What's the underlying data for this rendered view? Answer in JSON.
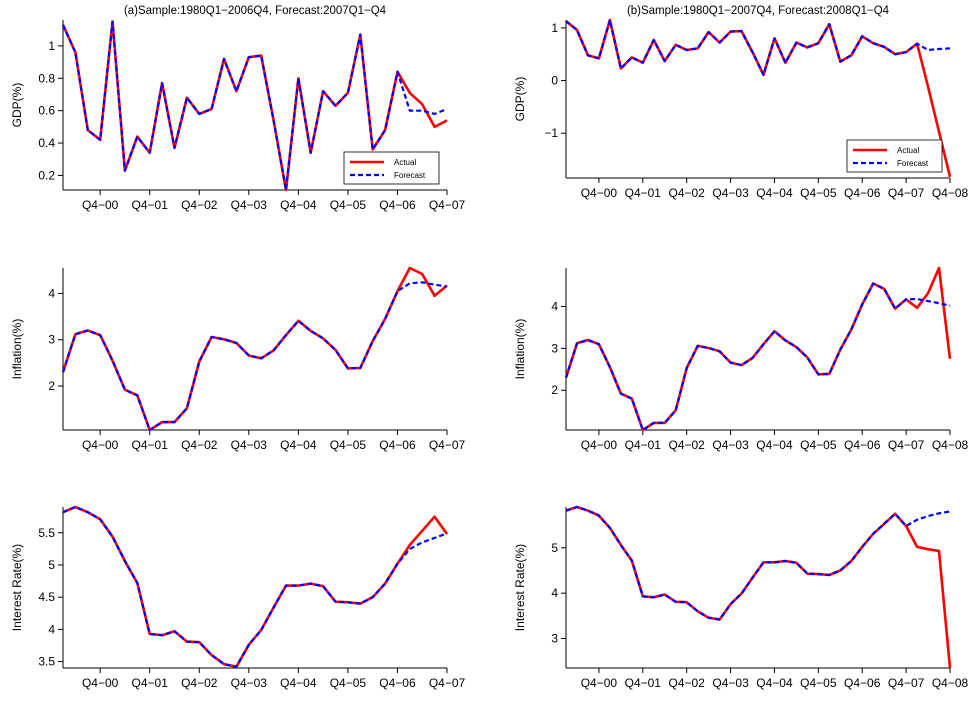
{
  "colors": {
    "actual": "#ff0000",
    "forecast": "#0000ff",
    "axis": "#000000"
  },
  "legend_labels": {
    "actual": "Actual",
    "forecast": "Forecast"
  },
  "chart_data": [
    {
      "type": "line",
      "title": "(a)Sample:1980Q1−2006Q4, Forecast:2007Q1−Q4",
      "ylabel": "GDP(%)",
      "ylim": [
        0.11,
        1.16
      ],
      "yticks": [
        "0.2",
        "0.4",
        "0.6",
        "0.8",
        "1"
      ],
      "xticks": [
        "Q4−00",
        "Q4−01",
        "Q4−02",
        "Q4−03",
        "Q4−04",
        "Q4−05",
        "Q4−06",
        "Q4−07"
      ],
      "legend": "bottom-right",
      "series": [
        {
          "name": "Actual",
          "values": [
            1.13,
            0.96,
            0.48,
            0.42,
            1.15,
            0.23,
            0.44,
            0.34,
            0.77,
            0.37,
            0.68,
            0.58,
            0.61,
            0.92,
            0.72,
            0.93,
            0.94,
            0.54,
            0.11,
            0.8,
            0.34,
            0.72,
            0.63,
            0.71,
            1.07,
            0.36,
            0.48,
            0.84,
            0.71,
            0.64,
            0.5,
            0.54
          ]
        },
        {
          "name": "Forecast",
          "values": [
            1.13,
            0.96,
            0.48,
            0.42,
            1.15,
            0.23,
            0.44,
            0.34,
            0.77,
            0.37,
            0.68,
            0.58,
            0.61,
            0.92,
            0.72,
            0.93,
            0.94,
            0.54,
            0.11,
            0.8,
            0.34,
            0.72,
            0.63,
            0.71,
            1.07,
            0.36,
            0.48,
            0.84,
            0.6,
            0.6,
            0.58,
            0.61
          ]
        }
      ]
    },
    {
      "type": "line",
      "title": "(b)Sample:1980Q1−2007Q4, Forecast:2008Q1−Q4",
      "ylabel": "GDP(%)",
      "ylim": [
        -1.85,
        1.15
      ],
      "yticks": [
        "−1",
        "0",
        "1"
      ],
      "xticks": [
        "Q4−00",
        "Q4−01",
        "Q4−02",
        "Q4−03",
        "Q4−04",
        "Q4−05",
        "Q4−06",
        "Q4−07",
        "Q4−08"
      ],
      "legend": "bottom-right",
      "series": [
        {
          "name": "Actual",
          "values": [
            1.13,
            0.96,
            0.48,
            0.42,
            1.15,
            0.23,
            0.44,
            0.34,
            0.77,
            0.37,
            0.68,
            0.58,
            0.61,
            0.92,
            0.72,
            0.93,
            0.94,
            0.54,
            0.11,
            0.8,
            0.34,
            0.72,
            0.63,
            0.71,
            1.07,
            0.36,
            0.48,
            0.84,
            0.71,
            0.64,
            0.5,
            0.54,
            0.7,
            -0.12,
            -0.97,
            -1.83
          ]
        },
        {
          "name": "Forecast",
          "values": [
            1.13,
            0.96,
            0.48,
            0.42,
            1.15,
            0.23,
            0.44,
            0.34,
            0.77,
            0.37,
            0.68,
            0.58,
            0.61,
            0.92,
            0.72,
            0.93,
            0.94,
            0.54,
            0.11,
            0.8,
            0.34,
            0.72,
            0.63,
            0.71,
            1.07,
            0.36,
            0.48,
            0.84,
            0.71,
            0.64,
            0.5,
            0.54,
            0.7,
            0.58,
            0.6,
            0.61
          ]
        }
      ]
    },
    {
      "type": "line",
      "title": "",
      "ylabel": "Inflation(%)",
      "ylim": [
        1.05,
        4.55
      ],
      "yticks": [
        "2",
        "3",
        "4"
      ],
      "xticks": [
        "Q4−00",
        "Q4−01",
        "Q4−02",
        "Q4−03",
        "Q4−04",
        "Q4−05",
        "Q4−06",
        "Q4−07"
      ],
      "legend": "none",
      "series": [
        {
          "name": "Actual",
          "values": [
            2.3,
            3.12,
            3.2,
            3.1,
            2.55,
            1.92,
            1.8,
            1.05,
            1.22,
            1.22,
            1.52,
            2.53,
            3.06,
            3.01,
            2.93,
            2.66,
            2.6,
            2.77,
            3.1,
            3.41,
            3.19,
            3.03,
            2.78,
            2.38,
            2.39,
            2.97,
            3.45,
            4.05,
            4.55,
            4.42,
            3.95,
            4.17
          ]
        },
        {
          "name": "Forecast",
          "values": [
            2.3,
            3.12,
            3.2,
            3.1,
            2.55,
            1.92,
            1.8,
            1.05,
            1.22,
            1.22,
            1.52,
            2.53,
            3.06,
            3.01,
            2.93,
            2.66,
            2.6,
            2.77,
            3.1,
            3.41,
            3.19,
            3.03,
            2.78,
            2.38,
            2.39,
            2.97,
            3.45,
            4.05,
            4.22,
            4.24,
            4.19,
            4.15
          ]
        }
      ]
    },
    {
      "type": "line",
      "title": "",
      "ylabel": "Inflation(%)",
      "ylim": [
        1.05,
        4.92
      ],
      "yticks": [
        "2",
        "3",
        "4"
      ],
      "xticks": [
        "Q4−00",
        "Q4−01",
        "Q4−02",
        "Q4−03",
        "Q4−04",
        "Q4−05",
        "Q4−06",
        "Q4−07",
        "Q4−08"
      ],
      "legend": "none",
      "series": [
        {
          "name": "Actual",
          "values": [
            2.3,
            3.12,
            3.2,
            3.1,
            2.55,
            1.92,
            1.8,
            1.05,
            1.22,
            1.22,
            1.52,
            2.53,
            3.06,
            3.01,
            2.93,
            2.66,
            2.6,
            2.77,
            3.1,
            3.41,
            3.19,
            3.03,
            2.78,
            2.38,
            2.39,
            2.97,
            3.45,
            4.05,
            4.55,
            4.42,
            3.95,
            4.17,
            3.97,
            4.32,
            4.92,
            2.75
          ]
        },
        {
          "name": "Forecast",
          "values": [
            2.3,
            3.12,
            3.2,
            3.1,
            2.55,
            1.92,
            1.8,
            1.05,
            1.22,
            1.22,
            1.52,
            2.53,
            3.06,
            3.01,
            2.93,
            2.66,
            2.6,
            2.77,
            3.1,
            3.41,
            3.19,
            3.03,
            2.78,
            2.38,
            2.39,
            2.97,
            3.45,
            4.05,
            4.55,
            4.42,
            3.95,
            4.17,
            4.18,
            4.13,
            4.08,
            4.02
          ]
        }
      ]
    },
    {
      "type": "line",
      "title": "",
      "ylabel": "Interest Rate(%)",
      "ylim": [
        3.4,
        5.9
      ],
      "yticks": [
        "3.5",
        "4",
        "4.5",
        "5",
        "5.5"
      ],
      "xticks": [
        "Q4−00",
        "Q4−01",
        "Q4−02",
        "Q4−03",
        "Q4−04",
        "Q4−05",
        "Q4−06",
        "Q4−07"
      ],
      "legend": "none",
      "series": [
        {
          "name": "Actual",
          "values": [
            5.82,
            5.9,
            5.82,
            5.71,
            5.44,
            5.06,
            4.72,
            3.93,
            3.91,
            3.97,
            3.81,
            3.8,
            3.6,
            3.46,
            3.42,
            3.76,
            3.99,
            4.34,
            4.68,
            4.68,
            4.71,
            4.67,
            4.43,
            4.42,
            4.4,
            4.5,
            4.71,
            5.02,
            5.31,
            5.53,
            5.75,
            5.48
          ]
        },
        {
          "name": "Forecast",
          "values": [
            5.82,
            5.9,
            5.82,
            5.71,
            5.44,
            5.06,
            4.72,
            3.93,
            3.91,
            3.97,
            3.81,
            3.8,
            3.6,
            3.46,
            3.42,
            3.76,
            3.99,
            4.34,
            4.68,
            4.68,
            4.71,
            4.67,
            4.43,
            4.42,
            4.4,
            4.5,
            4.71,
            5.02,
            5.25,
            5.35,
            5.42,
            5.49
          ]
        }
      ]
    },
    {
      "type": "line",
      "title": "",
      "ylabel": "Interest Rate(%)",
      "ylim": [
        2.35,
        5.9
      ],
      "yticks": [
        "3",
        "4",
        "5"
      ],
      "xticks": [
        "Q4−00",
        "Q4−01",
        "Q4−02",
        "Q4−03",
        "Q4−04",
        "Q4−05",
        "Q4−06",
        "Q4−07",
        "Q4−08"
      ],
      "legend": "none",
      "series": [
        {
          "name": "Actual",
          "values": [
            5.82,
            5.9,
            5.82,
            5.71,
            5.44,
            5.06,
            4.72,
            3.93,
            3.91,
            3.97,
            3.81,
            3.8,
            3.6,
            3.46,
            3.42,
            3.76,
            3.99,
            4.34,
            4.68,
            4.68,
            4.71,
            4.67,
            4.43,
            4.42,
            4.4,
            4.5,
            4.71,
            5.02,
            5.31,
            5.53,
            5.75,
            5.48,
            5.02,
            4.97,
            4.93,
            2.35
          ]
        },
        {
          "name": "Forecast",
          "values": [
            5.82,
            5.9,
            5.82,
            5.71,
            5.44,
            5.06,
            4.72,
            3.93,
            3.91,
            3.97,
            3.81,
            3.8,
            3.6,
            3.46,
            3.42,
            3.76,
            3.99,
            4.34,
            4.68,
            4.68,
            4.71,
            4.67,
            4.43,
            4.42,
            4.4,
            4.5,
            4.71,
            5.02,
            5.31,
            5.53,
            5.75,
            5.48,
            5.62,
            5.7,
            5.76,
            5.8
          ]
        }
      ]
    }
  ]
}
